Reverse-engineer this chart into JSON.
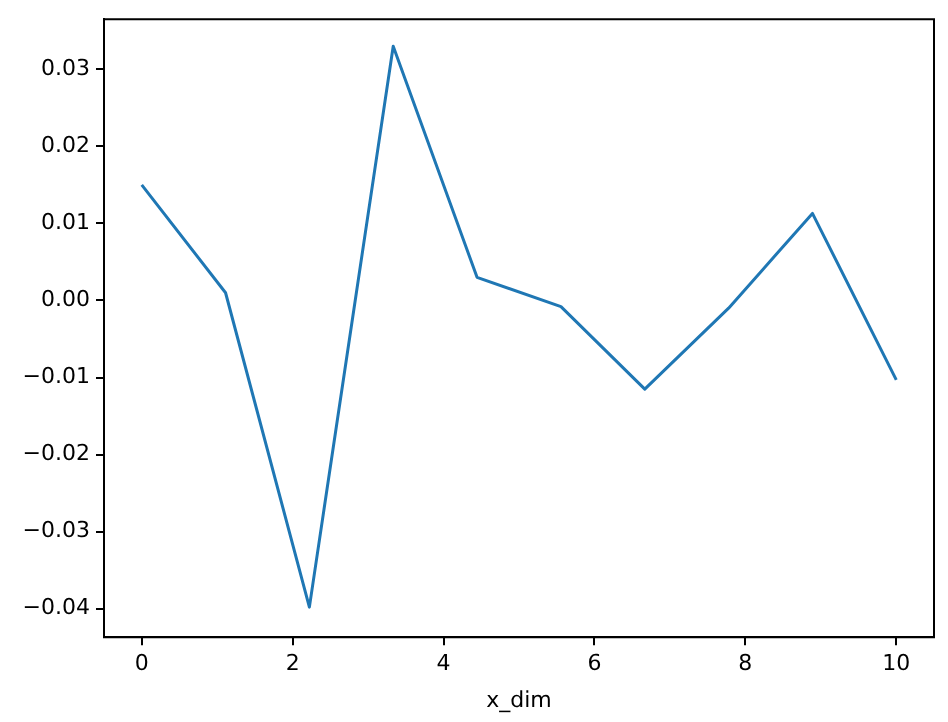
{
  "chart_data": {
    "type": "line",
    "xlabel": "x_dim",
    "series": [
      {
        "color": "#1f77b4",
        "x": [
          0,
          1.111,
          2.222,
          3.333,
          4.444,
          5.556,
          6.667,
          7.778,
          8.889,
          10
        ],
        "values": [
          0.015,
          0.001,
          -0.0398,
          0.033,
          0.003,
          -0.0008,
          -0.0115,
          -0.001,
          0.0113,
          -0.0103
        ]
      }
    ],
    "xlim": [
      -0.5,
      10.5
    ],
    "xticks": [
      0,
      2,
      4,
      6,
      8,
      10
    ],
    "ylim": [
      -0.0437,
      0.0365
    ],
    "yticks": [
      {
        "value": -0.04,
        "label": "−0.04"
      },
      {
        "value": -0.03,
        "label": "−0.03"
      },
      {
        "value": -0.02,
        "label": "−0.02"
      },
      {
        "value": -0.01,
        "label": "−0.01"
      },
      {
        "value": 0,
        "label": "0.00"
      },
      {
        "value": 0.01,
        "label": "0.01"
      },
      {
        "value": 0.02,
        "label": "0.02"
      },
      {
        "value": 0.03,
        "label": "0.03"
      }
    ],
    "grid": false,
    "legend": false,
    "marker": "none",
    "line_style": "solid"
  }
}
